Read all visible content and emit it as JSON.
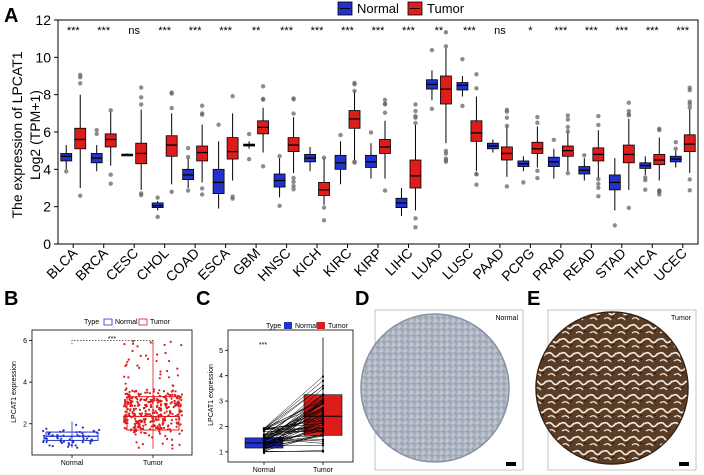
{
  "colors": {
    "normal": "#2233cc",
    "tumor": "#dd1c1c",
    "normal_light": "#5566dd",
    "tumor_light": "#ee6666"
  },
  "panels": {
    "A": "A",
    "B": "B",
    "C": "C",
    "D": "D",
    "E": "E"
  },
  "chart_data": [
    {
      "id": "A",
      "type": "box",
      "ylabel_line1": "The expression of LPCAT1",
      "ylabel_line2": "Log2 (TPM+1)",
      "ylim": [
        0,
        12
      ],
      "yticks": [
        0,
        2,
        4,
        6,
        8,
        10,
        12
      ],
      "legend": [
        "Normal",
        "Tumor"
      ],
      "categories": [
        "BLCA",
        "BRCA",
        "CESC",
        "CHOL",
        "COAD",
        "ESCA",
        "GBM",
        "HNSC",
        "KICH",
        "KIRC",
        "KIRP",
        "LIHC",
        "LUAD",
        "LUSC",
        "PAAD",
        "PCPG",
        "PRAD",
        "READ",
        "STAD",
        "THCA",
        "UCEC"
      ],
      "significance": [
        "***",
        "***",
        "ns",
        "***",
        "***",
        "***",
        "**",
        "***",
        "***",
        "***",
        "***",
        "***",
        "**",
        "***",
        "ns",
        "*",
        "***",
        "***",
        "***",
        "***",
        "***"
      ],
      "series": [
        {
          "name": "Normal",
          "boxes": [
            [
              4.0,
              4.45,
              4.7,
              4.85,
              5.3
            ],
            [
              3.9,
              4.35,
              4.6,
              4.85,
              5.3
            ],
            [
              4.75,
              4.75,
              4.8,
              4.8,
              4.85
            ],
            [
              1.8,
              1.95,
              2.05,
              2.2,
              2.3
            ],
            [
              3.0,
              3.45,
              3.7,
              4.0,
              4.6
            ],
            [
              1.9,
              2.7,
              3.3,
              4.0,
              5.5
            ],
            [
              5.1,
              5.25,
              5.3,
              5.35,
              5.5
            ],
            [
              2.5,
              3.05,
              3.4,
              3.75,
              4.6
            ],
            [
              3.9,
              4.4,
              4.6,
              4.8,
              5.2
            ],
            [
              3.2,
              4.0,
              4.35,
              4.75,
              5.5
            ],
            [
              3.5,
              4.1,
              4.4,
              4.75,
              5.4
            ],
            [
              1.5,
              1.95,
              2.2,
              2.45,
              3.0
            ],
            [
              7.7,
              8.3,
              8.55,
              8.8,
              9.3
            ],
            [
              7.9,
              8.25,
              8.5,
              8.65,
              9.0
            ],
            [
              4.9,
              5.1,
              5.25,
              5.4,
              5.6
            ],
            [
              3.9,
              4.15,
              4.3,
              4.45,
              4.7
            ],
            [
              3.5,
              4.15,
              4.4,
              4.65,
              5.1
            ],
            [
              3.4,
              3.75,
              3.95,
              4.15,
              4.6
            ],
            [
              1.8,
              2.9,
              3.3,
              3.7,
              4.6
            ],
            [
              3.7,
              4.05,
              4.2,
              4.35,
              4.7
            ],
            [
              4.1,
              4.4,
              4.55,
              4.7,
              5.0
            ]
          ]
        },
        {
          "name": "Tumor",
          "boxes": [
            [
              3.0,
              5.1,
              5.6,
              6.2,
              8.0
            ],
            [
              4.2,
              5.2,
              5.6,
              5.9,
              7.1
            ],
            [
              2.9,
              4.3,
              4.85,
              5.4,
              7.2
            ],
            [
              3.2,
              4.7,
              5.3,
              5.8,
              7.0
            ],
            [
              3.3,
              4.45,
              4.9,
              5.25,
              6.4
            ],
            [
              3.4,
              4.55,
              4.95,
              5.7,
              7.0
            ],
            [
              4.9,
              5.9,
              6.25,
              6.6,
              7.3
            ],
            [
              3.8,
              4.95,
              5.3,
              5.7,
              6.8
            ],
            [
              2.1,
              2.6,
              2.9,
              3.3,
              4.6
            ],
            [
              4.5,
              6.2,
              6.7,
              7.15,
              8.2
            ],
            [
              3.5,
              4.85,
              5.2,
              5.6,
              6.6
            ],
            [
              1.8,
              3.0,
              3.65,
              4.5,
              6.4
            ],
            [
              5.4,
              7.5,
              8.3,
              9.0,
              10.5
            ],
            [
              3.9,
              5.5,
              5.95,
              6.6,
              7.9
            ],
            [
              3.6,
              4.5,
              4.85,
              5.2,
              6.3
            ],
            [
              4.1,
              4.85,
              5.1,
              5.45,
              6.3
            ],
            [
              3.9,
              4.7,
              5.0,
              5.25,
              6.0
            ],
            [
              3.5,
              4.45,
              4.8,
              5.15,
              6.1
            ],
            [
              2.9,
              4.35,
              4.8,
              5.3,
              6.7
            ],
            [
              3.4,
              4.25,
              4.5,
              4.8,
              5.7
            ],
            [
              3.8,
              4.95,
              5.35,
              5.85,
              7.2
            ]
          ]
        }
      ]
    },
    {
      "id": "B",
      "type": "box",
      "legend_title": "Type",
      "legend": [
        "Normal",
        "Tumor"
      ],
      "ylabel": "LPCAT1 expression",
      "ylim": [
        0.5,
        6.5
      ],
      "yticks": [
        2,
        4,
        6
      ],
      "categories": [
        "Normal",
        "Tumor"
      ],
      "significance": "***",
      "boxes": [
        [
          0.85,
          1.2,
          1.4,
          1.6,
          2.1
        ],
        [
          0.8,
          1.7,
          2.35,
          3.3,
          6.0
        ]
      ]
    },
    {
      "id": "C",
      "type": "box",
      "legend_title": "Type",
      "legend": [
        "Normal",
        "Tumor"
      ],
      "ylabel": "LPCAT1 expression",
      "ylim": [
        0.6,
        5.8
      ],
      "yticks": [
        1,
        2,
        3,
        4,
        5
      ],
      "categories": [
        "Normal",
        "Tumor"
      ],
      "significance": "***",
      "boxes": [
        [
          0.95,
          1.15,
          1.35,
          1.55,
          1.95
        ],
        [
          1.0,
          1.65,
          2.4,
          3.25,
          5.5
        ]
      ]
    }
  ],
  "ihc": {
    "normal_label": "Normal",
    "tumor_label": "Tumor"
  }
}
